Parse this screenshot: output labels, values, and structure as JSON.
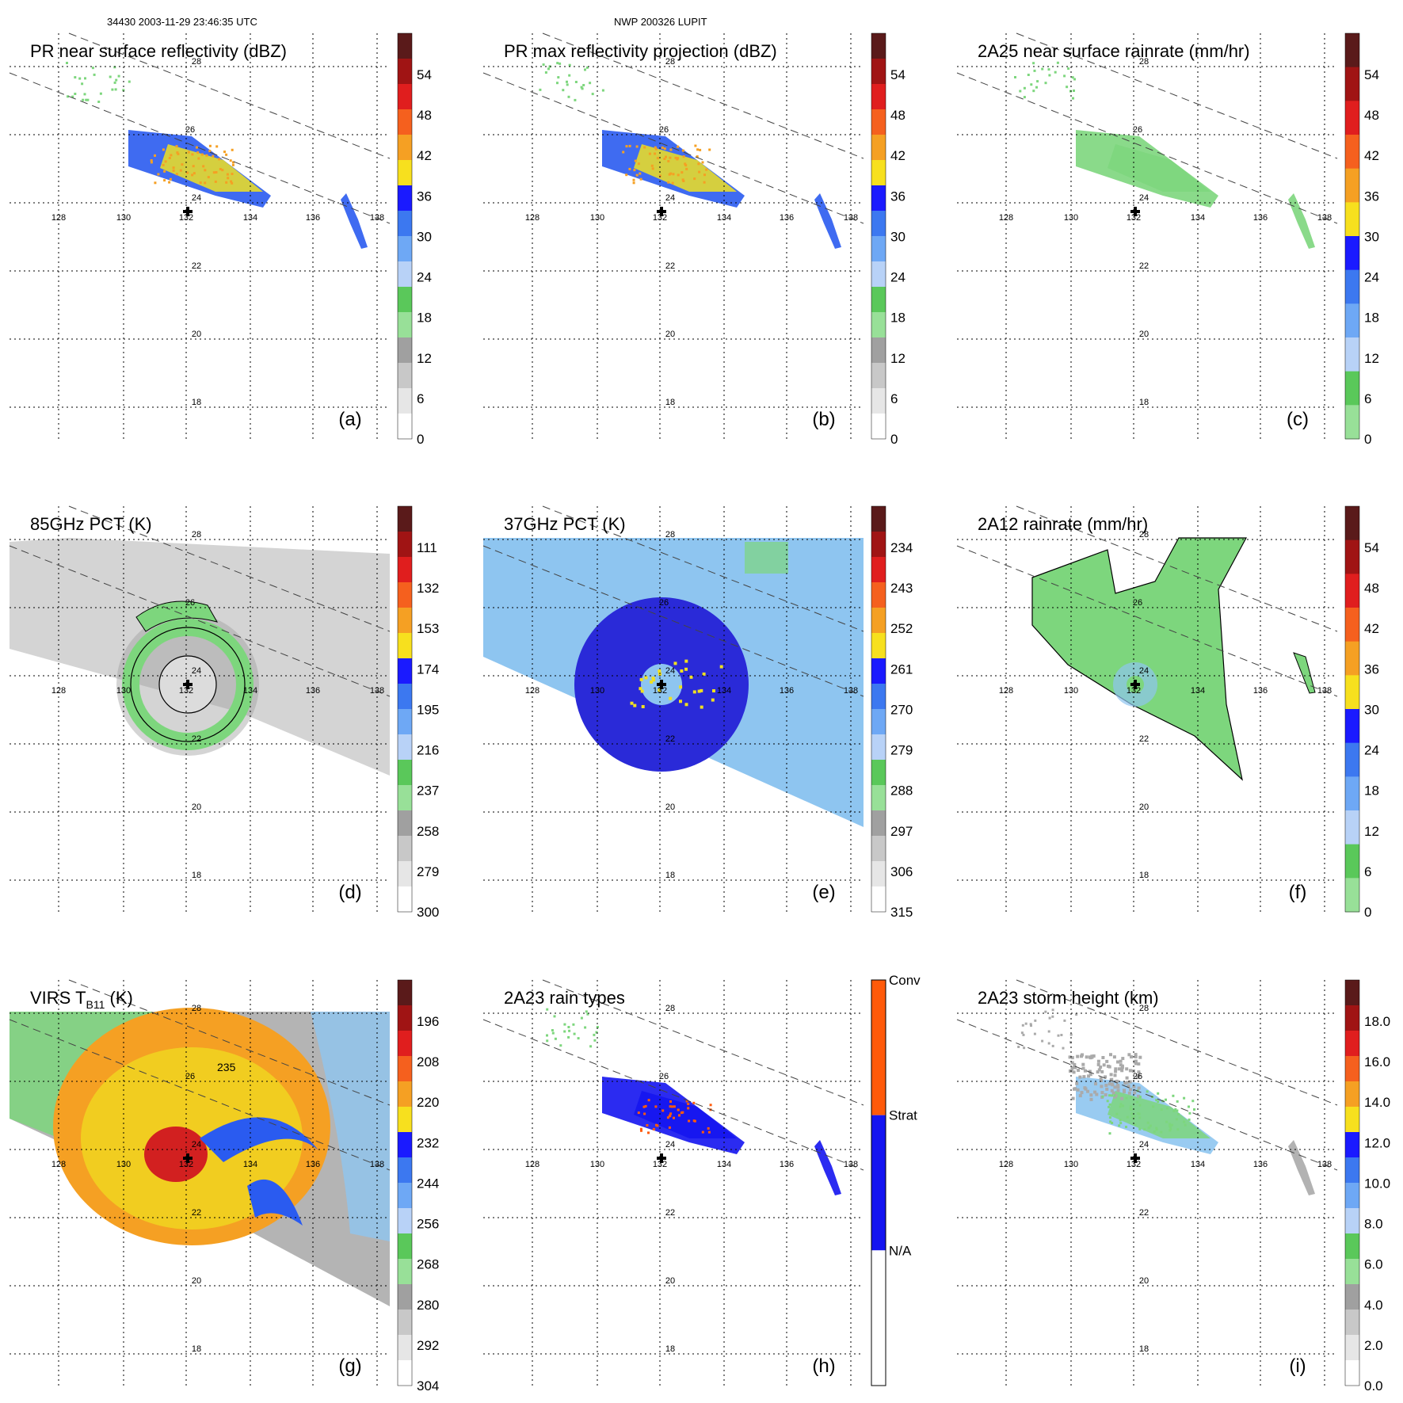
{
  "header": {
    "orbit_time": "34430 2003-11-29 23:46:35 UTC",
    "storm_id": "NWP 200326 LUPIT"
  },
  "lon_labels": [
    "128",
    "130",
    "132",
    "134",
    "136",
    "138"
  ],
  "lat_labels": [
    "28",
    "26",
    "24",
    "22",
    "20",
    "18"
  ],
  "colors": {
    "green": "#7dd67d",
    "lightblue": "#8ec5f0",
    "blue": "#2a5bf0",
    "deepblue": "#1a1ad8",
    "yellow": "#f0e020",
    "orange": "#f5a023",
    "red": "#d22020",
    "gray": "#c8c8c8"
  },
  "panels": [
    {
      "id": "a",
      "title": "PR near surface reflectivity (dBZ)",
      "letter": "(a)",
      "colorbar_ticks": [
        "54",
        "48",
        "42",
        "36",
        "30",
        "24",
        "18",
        "12",
        "6",
        "0"
      ],
      "colorbar_colors": [
        "#5a1a1a",
        "#a01414",
        "#e01e1e",
        "#f5601e",
        "#f5a023",
        "#f7e01e",
        "#1a1aff",
        "#3c78f0",
        "#6ea8f5",
        "#b8d2f7",
        "#5ac85a",
        "#98e098",
        "#a0a0a0",
        "#c8c8c8",
        "#e6e6e6",
        "#ffffff"
      ]
    },
    {
      "id": "b",
      "title": "PR max reflectivity projection (dBZ)",
      "letter": "(b)",
      "colorbar_ticks": [
        "54",
        "48",
        "42",
        "36",
        "30",
        "24",
        "18",
        "12",
        "6",
        "0"
      ],
      "colorbar_colors": [
        "#5a1a1a",
        "#a01414",
        "#e01e1e",
        "#f5601e",
        "#f5a023",
        "#f7e01e",
        "#1a1aff",
        "#3c78f0",
        "#6ea8f5",
        "#b8d2f7",
        "#5ac85a",
        "#98e098",
        "#a0a0a0",
        "#c8c8c8",
        "#e6e6e6",
        "#ffffff"
      ]
    },
    {
      "id": "c",
      "title": "2A25 near surface rainrate (mm/hr)",
      "letter": "(c)",
      "colorbar_ticks": [
        "54",
        "48",
        "42",
        "36",
        "30",
        "24",
        "18",
        "12",
        "6",
        "0"
      ],
      "colorbar_colors": [
        "#5a1a1a",
        "#a01414",
        "#e01e1e",
        "#f5601e",
        "#f5a023",
        "#f7e01e",
        "#1a1aff",
        "#3c78f0",
        "#6ea8f5",
        "#b8d2f7",
        "#5ac85a",
        "#98e098"
      ]
    },
    {
      "id": "d",
      "title": "85GHz PCT (K)",
      "letter": "(d)",
      "colorbar_ticks": [
        "111",
        "132",
        "153",
        "174",
        "195",
        "216",
        "237",
        "258",
        "279",
        "300"
      ],
      "colorbar_colors": [
        "#5a1a1a",
        "#a01414",
        "#e01e1e",
        "#f5601e",
        "#f5a023",
        "#f7e01e",
        "#1a1aff",
        "#3c78f0",
        "#6ea8f5",
        "#b8d2f7",
        "#5ac85a",
        "#98e098",
        "#a0a0a0",
        "#c8c8c8",
        "#e6e6e6",
        "#ffffff"
      ]
    },
    {
      "id": "e",
      "title": "37GHz PCT (K)",
      "letter": "(e)",
      "colorbar_ticks": [
        "234",
        "243",
        "252",
        "261",
        "270",
        "279",
        "288",
        "297",
        "306",
        "315"
      ],
      "colorbar_colors": [
        "#5a1a1a",
        "#a01414",
        "#e01e1e",
        "#f5601e",
        "#f5a023",
        "#f7e01e",
        "#1a1aff",
        "#3c78f0",
        "#6ea8f5",
        "#b8d2f7",
        "#5ac85a",
        "#98e098",
        "#a0a0a0",
        "#c8c8c8",
        "#e6e6e6",
        "#ffffff"
      ]
    },
    {
      "id": "f",
      "title": "2A12 rainrate (mm/hr)",
      "letter": "(f)",
      "colorbar_ticks": [
        "54",
        "48",
        "42",
        "36",
        "30",
        "24",
        "18",
        "12",
        "6",
        "0"
      ],
      "colorbar_colors": [
        "#5a1a1a",
        "#a01414",
        "#e01e1e",
        "#f5601e",
        "#f5a023",
        "#f7e01e",
        "#1a1aff",
        "#3c78f0",
        "#6ea8f5",
        "#b8d2f7",
        "#5ac85a",
        "#98e098"
      ]
    },
    {
      "id": "g",
      "title": "VIRS T",
      "title_sub": "B11",
      "title_unit": " (K)",
      "letter": "(g)",
      "colorbar_ticks": [
        "196",
        "208",
        "220",
        "232",
        "244",
        "256",
        "268",
        "280",
        "292",
        "304"
      ],
      "colorbar_colors": [
        "#5a1a1a",
        "#a01414",
        "#e01e1e",
        "#f5601e",
        "#f5a023",
        "#f7e01e",
        "#1a1aff",
        "#3c78f0",
        "#6ea8f5",
        "#b8d2f7",
        "#5ac85a",
        "#98e098",
        "#a0a0a0",
        "#c8c8c8",
        "#e6e6e6",
        "#ffffff"
      ],
      "annotation": "235"
    },
    {
      "id": "h",
      "title": "2A23 rain types",
      "letter": "(h)",
      "colorbar_ticks": [
        "Conv",
        "Strat",
        "N/A"
      ],
      "colorbar_colors": [
        "#ff5a0a",
        "#1414f0",
        "#ffffff"
      ]
    },
    {
      "id": "i",
      "title": "2A23 storm height (km)",
      "letter": "(i)",
      "colorbar_ticks": [
        "18.0",
        "16.0",
        "14.0",
        "12.0",
        "10.0",
        "8.0",
        "6.0",
        "4.0",
        "2.0",
        "0.0"
      ],
      "colorbar_colors": [
        "#5a1a1a",
        "#a01414",
        "#e01e1e",
        "#f5601e",
        "#f5a023",
        "#f7e01e",
        "#1a1aff",
        "#3c78f0",
        "#6ea8f5",
        "#b8d2f7",
        "#5ac85a",
        "#98e098",
        "#a0a0a0",
        "#c8c8c8",
        "#e6e6e6",
        "#ffffff"
      ]
    }
  ]
}
